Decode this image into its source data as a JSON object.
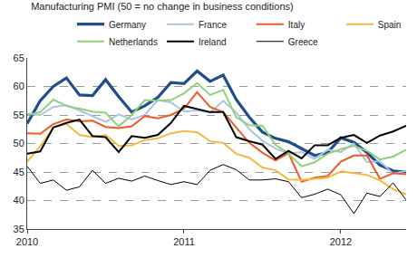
{
  "chart_data": {
    "type": "line",
    "title": "Manufacturing PMI (50 = no change in business conditions)",
    "categories": [
      "2010",
      null,
      null,
      null,
      null,
      null,
      null,
      null,
      null,
      null,
      null,
      null,
      "2011",
      null,
      null,
      null,
      null,
      null,
      null,
      null,
      null,
      null,
      null,
      null,
      "2012",
      null,
      null,
      null,
      null,
      null
    ],
    "series": [
      {
        "name": "Germany",
        "color": "#1f4e8c",
        "values": [
          53.5,
          57.5,
          60.0,
          61.5,
          58.5,
          58.4,
          61.2,
          58.2,
          55.5,
          56.6,
          58.1,
          60.7,
          60.5,
          62.7,
          60.9,
          62.0,
          57.7,
          54.6,
          52.0,
          50.9,
          50.3,
          49.1,
          47.9,
          48.4,
          51.0,
          50.2,
          48.4,
          46.2,
          45.2,
          45.0
        ]
      },
      {
        "name": "France",
        "color": "#a9c4e4",
        "values": [
          55.2,
          55.0,
          56.4,
          56.7,
          55.8,
          54.8,
          53.8,
          55.1,
          54.2,
          55.0,
          57.6,
          57.2,
          55.6,
          55.8,
          55.4,
          57.5,
          55.4,
          52.5,
          50.5,
          49.1,
          48.2,
          48.5,
          47.3,
          48.9,
          48.5,
          50.0,
          46.7,
          46.9,
          44.7,
          45.2
        ]
      },
      {
        "name": "Italy",
        "color": "#ee5a24",
        "values": [
          51.8,
          51.7,
          53.4,
          54.2,
          53.9,
          54.0,
          52.9,
          52.7,
          53.0,
          54.8,
          54.4,
          55.0,
          56.1,
          59.0,
          56.4,
          55.5,
          52.8,
          50.1,
          48.4,
          47.0,
          48.3,
          43.3,
          44.0,
          44.3,
          46.8,
          47.9,
          47.9,
          43.8,
          44.8,
          44.6
        ]
      },
      {
        "name": "Spain",
        "color": "#f5b942",
        "values": [
          46.8,
          49.5,
          52.8,
          53.4,
          51.5,
          51.1,
          51.5,
          49.6,
          49.7,
          50.6,
          50.9,
          51.8,
          52.2,
          52.0,
          50.4,
          50.1,
          48.2,
          47.5,
          45.8,
          45.3,
          43.7,
          43.6,
          43.8,
          44.0,
          45.1,
          44.8,
          44.5,
          43.5,
          42.0,
          41.1
        ]
      },
      {
        "name": "Netherlands",
        "color": "#8fd27a",
        "values": [
          55.0,
          55.5,
          57.7,
          56.6,
          56.1,
          55.6,
          55.4,
          53.0,
          55.0,
          57.6,
          57.5,
          57.6,
          58.8,
          60.6,
          58.5,
          59.4,
          54.6,
          53.2,
          53.1,
          49.8,
          48.2,
          46.0,
          46.7,
          48.2,
          49.0,
          49.6,
          48.7,
          47.2,
          47.7,
          48.9
        ]
      },
      {
        "name": "Ireland",
        "color": "#000000",
        "values": [
          48.2,
          48.6,
          52.8,
          53.6,
          54.2,
          51.3,
          51.1,
          48.5,
          51.3,
          51.0,
          51.5,
          53.6,
          56.6,
          56.0,
          55.5,
          55.5,
          51.1,
          50.4,
          49.8,
          47.3,
          48.7,
          47.4,
          49.7,
          49.7,
          51.0,
          51.5,
          50.1,
          51.4,
          52.1,
          53.1
        ]
      },
      {
        "name": "Greece",
        "color": "#000000",
        "values": [
          46.0,
          43.0,
          43.6,
          41.8,
          42.4,
          45.3,
          43.0,
          43.9,
          43.4,
          44.3,
          43.5,
          42.8,
          43.3,
          42.8,
          45.3,
          46.3,
          45.4,
          43.6,
          43.6,
          43.8,
          43.3,
          40.5,
          41.1,
          42.0,
          41.0,
          37.7,
          41.3,
          40.7,
          43.1,
          40.1
        ]
      }
    ],
    "ylim": [
      35,
      65
    ],
    "yticks": [
      35,
      40,
      45,
      50,
      55,
      60,
      65
    ],
    "grid": true,
    "legend": "top"
  }
}
